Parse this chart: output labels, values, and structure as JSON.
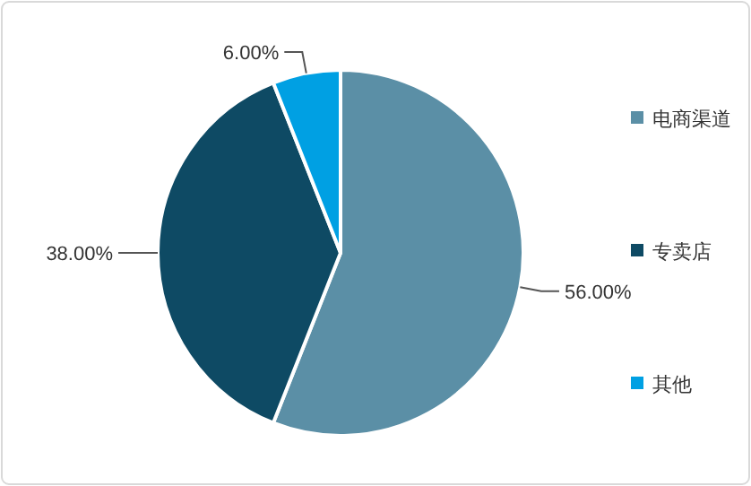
{
  "chart_data": {
    "type": "pie",
    "categories": [
      "电商渠道",
      "专卖店",
      "其他"
    ],
    "values": [
      56,
      38,
      6
    ],
    "colors": [
      "#5b8fa6",
      "#0e4a64",
      "#00a0e3"
    ],
    "value_labels": [
      "56.00%",
      "38.00%",
      "6.00%"
    ],
    "legend": "right"
  }
}
